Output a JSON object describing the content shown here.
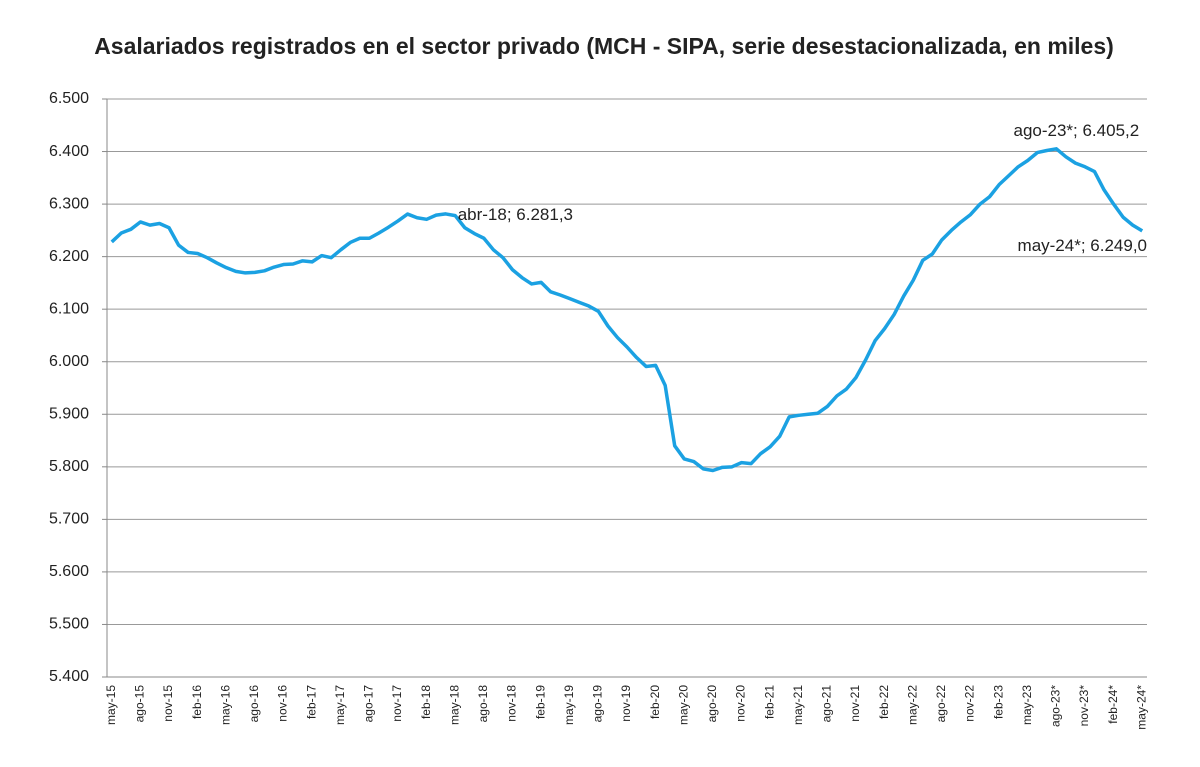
{
  "chart_data": {
    "type": "line",
    "title": "Asalariados registrados en el sector privado (MCH - SIPA, serie desestacionalizada, en miles)",
    "categories": [
      "may-15",
      null,
      null,
      "ago-15",
      null,
      null,
      "nov-15",
      null,
      null,
      "feb-16",
      null,
      null,
      "may-16",
      null,
      null,
      "ago-16",
      null,
      null,
      "nov-16",
      null,
      null,
      "feb-17",
      null,
      null,
      "may-17",
      null,
      null,
      "ago-17",
      null,
      null,
      "nov-17",
      null,
      null,
      "feb-18",
      null,
      null,
      "may-18",
      null,
      null,
      "ago-18",
      null,
      null,
      "nov-18",
      null,
      null,
      "feb-19",
      null,
      null,
      "may-19",
      null,
      null,
      "ago-19",
      null,
      null,
      "nov-19",
      null,
      null,
      "feb-20",
      null,
      null,
      "may-20",
      null,
      null,
      "ago-20",
      null,
      null,
      "nov-20",
      null,
      null,
      "feb-21",
      null,
      null,
      "may-21",
      null,
      null,
      "ago-21",
      null,
      null,
      "nov-21",
      null,
      null,
      "feb-22",
      null,
      null,
      "may-22",
      null,
      null,
      "ago-22",
      null,
      null,
      "nov-22",
      null,
      null,
      "feb-23",
      null,
      null,
      "may-23",
      null,
      null,
      "ago-23*",
      null,
      null,
      "nov-23*",
      null,
      null,
      "feb-24*",
      null,
      null,
      "may-24*"
    ],
    "values": [
      6228,
      6245,
      6252,
      6266,
      6260,
      6263,
      6255,
      6222,
      6208,
      6206,
      6198,
      6188,
      6179,
      6172,
      6169,
      6170,
      6173,
      6180,
      6185,
      6186,
      6192,
      6190,
      6202,
      6198,
      6213,
      6227,
      6235,
      6235,
      6245,
      6256,
      6268,
      6281,
      6274,
      6271,
      6279,
      6281.3,
      6278,
      6255,
      6244,
      6235,
      6213,
      6198,
      6175,
      6160,
      6148,
      6151,
      6133,
      6127,
      6120,
      6113,
      6106,
      6096,
      6068,
      6046,
      6028,
      6008,
      5991,
      5993,
      5955,
      5840,
      5815,
      5810,
      5796,
      5793,
      5799,
      5800,
      5808,
      5806,
      5825,
      5838,
      5858,
      5895,
      5898,
      5900,
      5902,
      5915,
      5935,
      5948,
      5970,
      6003,
      6040,
      6063,
      6090,
      6125,
      6155,
      6193,
      6205,
      6232,
      6250,
      6266,
      6280,
      6300,
      6314,
      6337,
      6354,
      6371,
      6383,
      6398,
      6402,
      6405.2,
      6390,
      6378,
      6371,
      6362,
      6327,
      6300,
      6275,
      6260,
      6249.0
    ],
    "value_labels": [
      null,
      null,
      null,
      null,
      null,
      null,
      null,
      null,
      null,
      null,
      null,
      null,
      null,
      null,
      null,
      null,
      null,
      null,
      null,
      null,
      null,
      null,
      null,
      null,
      null,
      null,
      null,
      null,
      null,
      null,
      null,
      null,
      null,
      null,
      null,
      "abr-18; 6.281,3",
      null,
      null,
      null,
      null,
      null,
      null,
      null,
      null,
      null,
      null,
      null,
      null,
      null,
      null,
      null,
      null,
      null,
      null,
      null,
      null,
      null,
      null,
      null,
      null,
      null,
      null,
      null,
      null,
      null,
      null,
      null,
      null,
      null,
      null,
      null,
      null,
      null,
      null,
      null,
      null,
      null,
      null,
      null,
      null,
      null,
      null,
      null,
      null,
      null,
      null,
      null,
      null,
      null,
      null,
      null,
      null,
      null,
      null,
      null,
      null,
      null,
      null,
      null,
      "ago-23*; 6.405,2",
      null,
      null,
      null,
      null,
      null,
      null,
      null,
      null,
      "may-24*; 6.249,0"
    ],
    "color": "#1ba1e2",
    "ylim": [
      5400,
      6500
    ],
    "yticks": [
      {
        "value": 5400,
        "label": "5.400"
      },
      {
        "value": 5500,
        "label": "5.500"
      },
      {
        "value": 5600,
        "label": "5.600"
      },
      {
        "value": 5700,
        "label": "5.700"
      },
      {
        "value": 5800,
        "label": "5.800"
      },
      {
        "value": 5900,
        "label": "5.900"
      },
      {
        "value": 6000,
        "label": "6.000"
      },
      {
        "value": 6100,
        "label": "6.100"
      },
      {
        "value": 6200,
        "label": "6.200"
      },
      {
        "value": 6300,
        "label": "6.300"
      },
      {
        "value": 6400,
        "label": "6.400"
      },
      {
        "value": 6500,
        "label": "6.500"
      }
    ],
    "grid": true
  }
}
